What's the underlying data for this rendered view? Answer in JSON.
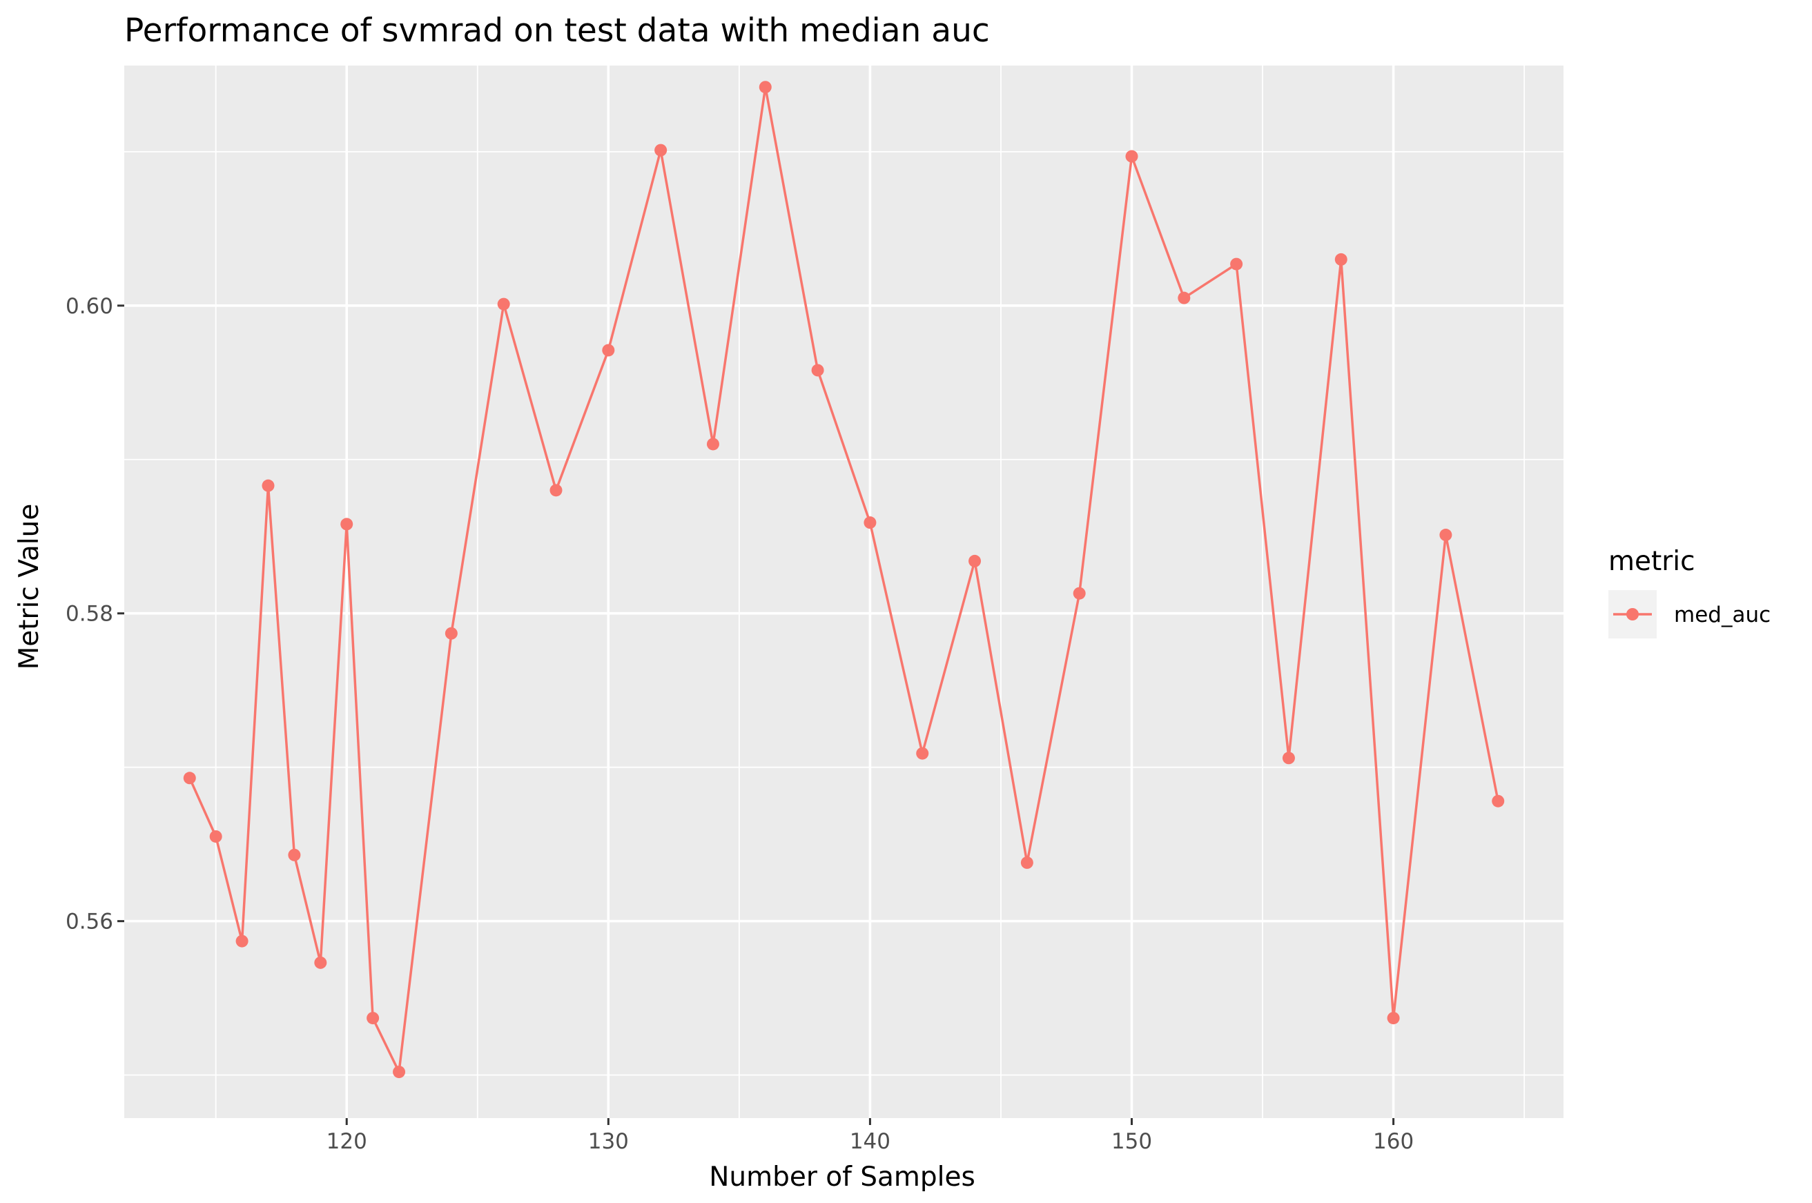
{
  "chart_data": {
    "type": "line",
    "title": "Performance of svmrad on test data with median auc",
    "xlabel": "Number of Samples",
    "ylabel": "Metric Value",
    "x": [
      114,
      115,
      116,
      117,
      118,
      119,
      120,
      121,
      122,
      124,
      126,
      128,
      130,
      132,
      134,
      136,
      138,
      140,
      142,
      144,
      146,
      148,
      150,
      152,
      154,
      156,
      158,
      160,
      162,
      164
    ],
    "series": [
      {
        "name": "med_auc",
        "color": "#F8766D",
        "values": [
          0.5693,
          0.5655,
          0.5587,
          0.5883,
          0.5643,
          0.5573,
          0.5858,
          0.5537,
          0.5502,
          0.5787,
          0.6001,
          0.588,
          0.5971,
          0.6101,
          0.591,
          0.6142,
          0.5958,
          0.5859,
          0.5709,
          0.5834,
          0.5638,
          0.5813,
          0.6097,
          0.6005,
          0.6027,
          0.5706,
          0.603,
          0.5537,
          0.5851,
          0.5678
        ]
      }
    ],
    "xlim": [
      111.5,
      166.5
    ],
    "ylim": [
      0.5472,
      0.6156
    ],
    "x_ticks": [
      120,
      130,
      140,
      150,
      160
    ],
    "x_tick_labels": [
      "120",
      "130",
      "140",
      "150",
      "160"
    ],
    "x_minor_ticks": [
      115,
      125,
      135,
      145,
      155,
      165
    ],
    "y_ticks": [
      0.56,
      0.58,
      0.6
    ],
    "y_tick_labels": [
      "0.56",
      "0.58",
      "0.60"
    ],
    "y_minor_ticks": [
      0.55,
      0.57,
      0.59,
      0.61
    ],
    "grid": true,
    "panel_background": "#EBEBEB",
    "grid_color": "#FFFFFF",
    "legend": {
      "title": "metric",
      "position": "right",
      "entries": [
        "med_auc"
      ]
    }
  }
}
